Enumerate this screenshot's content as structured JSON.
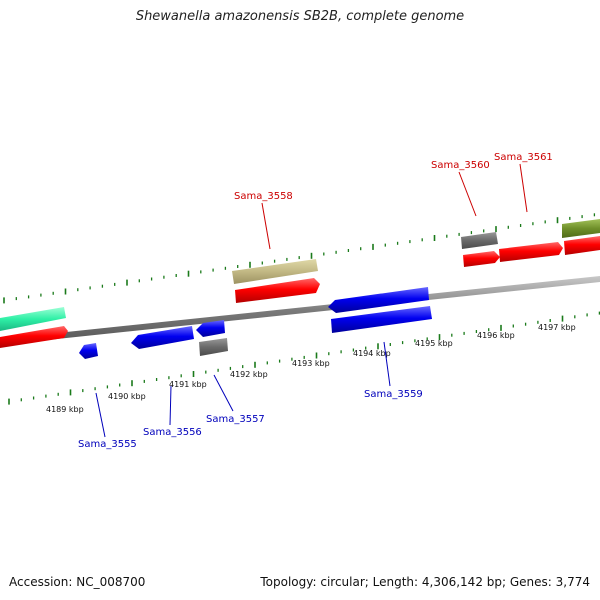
{
  "title": "Shewanella amazonensis SB2B, complete genome",
  "accession": "Accession: NC_008700",
  "summary": "Topology: circular; Length: 4,306,142 bp; Genes: 3,774",
  "colors": {
    "forward_label": "#cc0000",
    "reverse_label": "#0000bb",
    "tick": "#1a7a1a",
    "backbone": "#808080"
  },
  "kbp_labels": [
    "4189 kbp",
    "4190 kbp",
    "4191 kbp",
    "4192 kbp",
    "4193 kbp",
    "4194 kbp",
    "4195 kbp",
    "4196 kbp",
    "4197 kbp"
  ],
  "gene_labels": {
    "forward": [
      "Sama_3558",
      "Sama_3560",
      "Sama_3561"
    ],
    "reverse": [
      "Sama_3555",
      "Sama_3556",
      "Sama_3557",
      "Sama_3559"
    ]
  }
}
